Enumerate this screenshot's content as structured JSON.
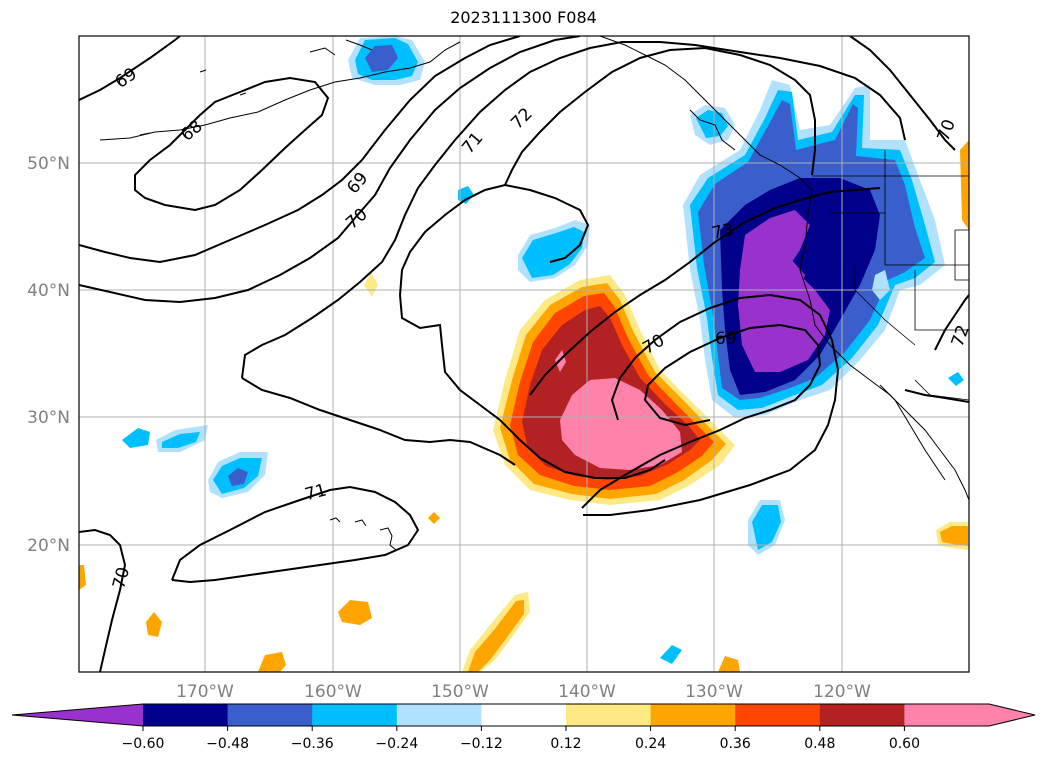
{
  "title": "2023111300 F084",
  "map": {
    "projection": "plate-carree",
    "lon_range": [
      -180,
      -110
    ],
    "lat_range": [
      10,
      60
    ],
    "grid": true,
    "lat_ticks": [
      "50°N",
      "40°N",
      "30°N",
      "20°N"
    ],
    "lon_ticks": [
      "170°W",
      "160°W",
      "150°W",
      "140°W",
      "130°W",
      "120°W"
    ],
    "contour_labels": [
      "69",
      "68",
      "71",
      "72",
      "69",
      "70",
      "73",
      "70",
      "69",
      "71",
      "70",
      "72",
      "70"
    ]
  },
  "colorbar": {
    "orientation": "horizontal",
    "extend": "both",
    "ticks": [
      "−0.60",
      "−0.48",
      "−0.36",
      "−0.24",
      "−0.12",
      "0.12",
      "0.24",
      "0.36",
      "0.48",
      "0.60"
    ],
    "colors": [
      "#9932cc",
      "#00008b",
      "#3a5fcd",
      "#00bfff",
      "#b0e2ff",
      "#ffffff",
      "#ffe985",
      "#ffa500",
      "#ff4500",
      "#b22222",
      "#ff82ab",
      "#ff82ab"
    ]
  },
  "colors": {
    "contour": "#000000",
    "grid": "#b0b0b0",
    "coast": "#000000",
    "tick_label": "#808080"
  }
}
